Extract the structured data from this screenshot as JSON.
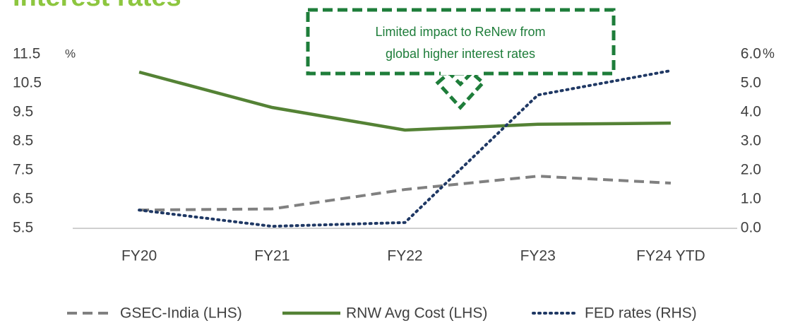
{
  "chart_data": {
    "type": "line",
    "title": "Interest rates",
    "annotation": "Limited impact to ReNew from global higher interest rates",
    "annotation_lines": [
      "Limited impact to ReNew from",
      "global higher interest rates"
    ],
    "y_unit": "%",
    "y2_unit": "%",
    "categories": [
      "FY20",
      "FY21",
      "FY22",
      "FY23",
      "FY24 YTD"
    ],
    "series": [
      {
        "name": "GSEC-India (LHS)",
        "color": "#808080",
        "dash": "dashed",
        "values": [
          6.13,
          6.17,
          6.84,
          7.3,
          7.06
        ]
      },
      {
        "name": "RNW Avg Cost (LHS)",
        "color": "#548235",
        "dash": "solid",
        "values": [
          10.89,
          9.67,
          8.89,
          9.09,
          9.13
        ]
      },
      {
        "name": "FED rates (RHS)",
        "color": "#1f3864",
        "dash": "dotted",
        "axis": "y2",
        "values": [
          0.63,
          0.07,
          0.2,
          4.6,
          5.44
        ]
      }
    ],
    "ylim": [
      5.5,
      11.5
    ],
    "yticks": [
      5.5,
      6.5,
      7.5,
      8.5,
      9.5,
      10.5,
      11.5
    ],
    "y2lim": [
      0,
      6
    ],
    "y2ticks": [
      {
        "value": 0,
        "label": "0.0"
      },
      {
        "value": 1,
        "label": "1.0"
      },
      {
        "value": 2,
        "label": "2.0"
      },
      {
        "value": 3,
        "label": "3.0"
      },
      {
        "value": 4,
        "label": "4.0"
      },
      {
        "value": 5,
        "label": "5.0"
      },
      {
        "value": 6,
        "label": "6.0"
      }
    ],
    "grid": false,
    "legend": "bottom"
  }
}
